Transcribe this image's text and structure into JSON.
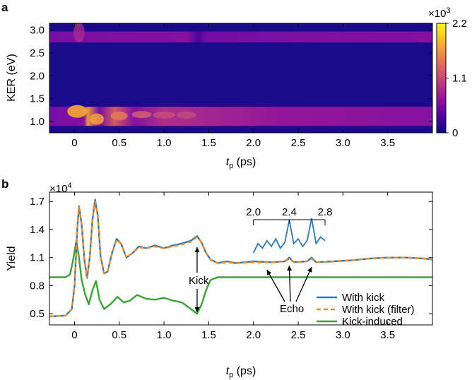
{
  "panels": {
    "a": {
      "letter": "a",
      "ylabel": "KER (eV)",
      "xlabel_main": "t",
      "xlabel_sub": "p",
      "xlabel_unit": " (ps)",
      "colorbar": {
        "exponent_prefix": "×10",
        "exponent": "3",
        "ticks": [
          "2.2",
          "1.1",
          "0"
        ],
        "tick_values": [
          2.2,
          1.1,
          0
        ],
        "colormap": [
          "#0d0887",
          "#5b02a3",
          "#9a179b",
          "#cb4678",
          "#eb7852",
          "#fbb32f",
          "#f0f921"
        ]
      }
    },
    "b": {
      "letter": "b",
      "ylabel": "Yield",
      "y_exponent_prefix": "×10",
      "y_exponent": "4",
      "xlabel_main": "t",
      "xlabel_sub": "p",
      "xlabel_unit": " (ps)",
      "annotations": {
        "kick": "Kick",
        "echo": "Echo"
      },
      "inset_ticks": [
        "2.0",
        "2.4",
        "2.8"
      ],
      "legend": [
        {
          "label": "With kick",
          "color": "#2b7bba",
          "dash": "solid"
        },
        {
          "label": "With kick (filter)",
          "color": "#f08a24",
          "dash": "dashed"
        },
        {
          "label": "Kick-induced",
          "color": "#3aa335",
          "dash": "solid"
        }
      ]
    }
  },
  "chart_data": [
    {
      "type": "heatmap",
      "title": "",
      "xlabel": "t_p (ps)",
      "ylabel": "KER (eV)",
      "xlim": [
        -0.28,
        4.0
      ],
      "ylim": [
        0.75,
        3.15
      ],
      "xticks": [
        0,
        0.5,
        1.0,
        1.5,
        2.0,
        2.5,
        3.0,
        3.5
      ],
      "xtick_labels": [
        "0",
        "0.5",
        "1.0",
        "1.5",
        "2.0",
        "2.5",
        "3.0",
        "3.5"
      ],
      "yticks": [
        1.0,
        1.5,
        2.0,
        2.5,
        3.0
      ],
      "ytick_labels": [
        "1.0",
        "1.5",
        "2.0",
        "2.5",
        "3.0"
      ],
      "colorbar_range": [
        0,
        2200
      ],
      "bands": [
        {
          "ker_center": 1.15,
          "description": "strong low-KER band with oscillating features after t_p = 0"
        },
        {
          "ker_center": 2.85,
          "description": "weaker high-KER band, brightest before 1.4 ps"
        }
      ]
    },
    {
      "type": "line",
      "title": "",
      "xlabel": "t_p (ps)",
      "ylabel": "Yield",
      "xlim": [
        -0.28,
        4.0
      ],
      "ylim": [
        0.38,
        1.8
      ],
      "xticks": [
        0,
        0.5,
        1.0,
        1.5,
        2.0,
        2.5,
        3.0,
        3.5
      ],
      "xtick_labels": [
        "0",
        "0.5",
        "1.0",
        "1.5",
        "2.0",
        "2.5",
        "3.0",
        "3.5"
      ],
      "yticks": [
        0.5,
        0.8,
        1.1,
        1.4,
        1.7
      ],
      "ytick_labels": [
        "0.5",
        "0.8",
        "1.1",
        "1.4",
        "1.7"
      ],
      "y_scale_factor": 10000,
      "series": [
        {
          "name": "With kick",
          "points": [
            [
              -0.28,
              0.47
            ],
            [
              -0.1,
              0.48
            ],
            [
              -0.03,
              0.55
            ],
            [
              0.0,
              0.8
            ],
            [
              0.03,
              1.4
            ],
            [
              0.05,
              1.65
            ],
            [
              0.08,
              1.45
            ],
            [
              0.11,
              1.08
            ],
            [
              0.14,
              0.88
            ],
            [
              0.17,
              1.1
            ],
            [
              0.2,
              1.5
            ],
            [
              0.23,
              1.72
            ],
            [
              0.26,
              1.55
            ],
            [
              0.29,
              1.12
            ],
            [
              0.33,
              0.93
            ],
            [
              0.37,
              0.95
            ],
            [
              0.42,
              1.15
            ],
            [
              0.47,
              1.3
            ],
            [
              0.52,
              1.25
            ],
            [
              0.58,
              1.1
            ],
            [
              0.65,
              1.15
            ],
            [
              0.72,
              1.22
            ],
            [
              0.8,
              1.2
            ],
            [
              0.9,
              1.23
            ],
            [
              1.0,
              1.2
            ],
            [
              1.1,
              1.23
            ],
            [
              1.2,
              1.25
            ],
            [
              1.3,
              1.28
            ],
            [
              1.37,
              1.33
            ],
            [
              1.42,
              1.26
            ],
            [
              1.47,
              1.15
            ],
            [
              1.52,
              1.08
            ],
            [
              1.6,
              1.04
            ],
            [
              1.7,
              1.06
            ],
            [
              1.8,
              1.04
            ],
            [
              2.0,
              1.06
            ],
            [
              2.2,
              1.05
            ],
            [
              2.35,
              1.06
            ],
            [
              2.4,
              1.1
            ],
            [
              2.45,
              1.05
            ],
            [
              2.6,
              1.06
            ],
            [
              2.65,
              1.1
            ],
            [
              2.7,
              1.05
            ],
            [
              2.9,
              1.06
            ],
            [
              3.1,
              1.07
            ],
            [
              3.3,
              1.09
            ],
            [
              3.5,
              1.1
            ],
            [
              3.7,
              1.1
            ],
            [
              3.9,
              1.09
            ],
            [
              4.0,
              1.08
            ]
          ]
        },
        {
          "name": "With kick (filter)",
          "points": [
            [
              -0.28,
              0.47
            ],
            [
              -0.1,
              0.48
            ],
            [
              -0.03,
              0.55
            ],
            [
              0.0,
              0.8
            ],
            [
              0.03,
              1.4
            ],
            [
              0.05,
              1.64
            ],
            [
              0.08,
              1.45
            ],
            [
              0.11,
              1.08
            ],
            [
              0.14,
              0.88
            ],
            [
              0.17,
              1.1
            ],
            [
              0.2,
              1.5
            ],
            [
              0.23,
              1.7
            ],
            [
              0.26,
              1.55
            ],
            [
              0.29,
              1.12
            ],
            [
              0.33,
              0.93
            ],
            [
              0.37,
              0.95
            ],
            [
              0.42,
              1.15
            ],
            [
              0.47,
              1.29
            ],
            [
              0.52,
              1.25
            ],
            [
              0.58,
              1.1
            ],
            [
              0.65,
              1.15
            ],
            [
              0.72,
              1.21
            ],
            [
              0.8,
              1.2
            ],
            [
              0.9,
              1.22
            ],
            [
              1.0,
              1.2
            ],
            [
              1.1,
              1.22
            ],
            [
              1.2,
              1.24
            ],
            [
              1.3,
              1.27
            ],
            [
              1.37,
              1.32
            ],
            [
              1.42,
              1.26
            ],
            [
              1.47,
              1.15
            ],
            [
              1.52,
              1.08
            ],
            [
              1.6,
              1.04
            ],
            [
              1.7,
              1.05
            ],
            [
              1.8,
              1.04
            ],
            [
              2.0,
              1.05
            ],
            [
              2.2,
              1.05
            ],
            [
              2.35,
              1.06
            ],
            [
              2.4,
              1.09
            ],
            [
              2.45,
              1.05
            ],
            [
              2.6,
              1.06
            ],
            [
              2.65,
              1.09
            ],
            [
              2.7,
              1.05
            ],
            [
              2.9,
              1.06
            ],
            [
              3.1,
              1.07
            ],
            [
              3.3,
              1.09
            ],
            [
              3.5,
              1.1
            ],
            [
              3.7,
              1.1
            ],
            [
              3.9,
              1.09
            ],
            [
              4.0,
              1.08
            ]
          ]
        },
        {
          "name": "Kick-induced",
          "points": [
            [
              -0.28,
              0.89
            ],
            [
              -0.1,
              0.89
            ],
            [
              -0.05,
              0.92
            ],
            [
              -0.02,
              1.05
            ],
            [
              0.02,
              1.28
            ],
            [
              0.05,
              1.1
            ],
            [
              0.08,
              0.86
            ],
            [
              0.12,
              0.7
            ],
            [
              0.16,
              0.6
            ],
            [
              0.2,
              0.75
            ],
            [
              0.24,
              0.85
            ],
            [
              0.28,
              0.65
            ],
            [
              0.33,
              0.55
            ],
            [
              0.4,
              0.6
            ],
            [
              0.48,
              0.68
            ],
            [
              0.55,
              0.62
            ],
            [
              0.62,
              0.64
            ],
            [
              0.7,
              0.7
            ],
            [
              0.8,
              0.66
            ],
            [
              0.9,
              0.65
            ],
            [
              1.0,
              0.67
            ],
            [
              1.1,
              0.64
            ],
            [
              1.2,
              0.62
            ],
            [
              1.3,
              0.55
            ],
            [
              1.37,
              0.5
            ],
            [
              1.42,
              0.6
            ],
            [
              1.47,
              0.75
            ],
            [
              1.52,
              0.86
            ],
            [
              1.6,
              0.89
            ],
            [
              2.0,
              0.89
            ],
            [
              2.5,
              0.89
            ],
            [
              3.0,
              0.89
            ],
            [
              3.5,
              0.89
            ],
            [
              4.0,
              0.89
            ]
          ]
        }
      ],
      "inset": {
        "xlim": [
          2.0,
          2.8
        ],
        "xticks": [
          2.0,
          2.4,
          2.8
        ],
        "points": [
          [
            2.0,
            1.15
          ],
          [
            2.05,
            1.25
          ],
          [
            2.1,
            1.2
          ],
          [
            2.15,
            1.28
          ],
          [
            2.2,
            1.22
          ],
          [
            2.25,
            1.3
          ],
          [
            2.3,
            1.2
          ],
          [
            2.35,
            1.26
          ],
          [
            2.4,
            1.5
          ],
          [
            2.45,
            1.25
          ],
          [
            2.5,
            1.3
          ],
          [
            2.55,
            1.22
          ],
          [
            2.6,
            1.28
          ],
          [
            2.65,
            1.52
          ],
          [
            2.7,
            1.25
          ],
          [
            2.75,
            1.32
          ],
          [
            2.8,
            1.28
          ]
        ]
      }
    }
  ]
}
